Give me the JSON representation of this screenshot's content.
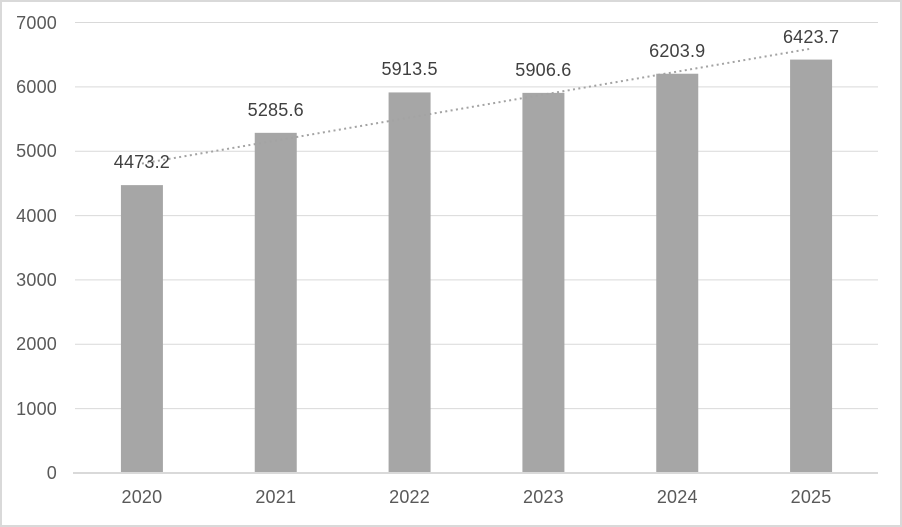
{
  "chart_data": {
    "type": "bar",
    "title": "",
    "xlabel": "",
    "ylabel": "",
    "categories": [
      "2020",
      "2021",
      "2022",
      "2023",
      "2024",
      "2025"
    ],
    "values": [
      4473.2,
      5285.6,
      5913.5,
      5906.6,
      6203.9,
      6423.7
    ],
    "data_labels": [
      "4473.2",
      "5285.6",
      "5913.5",
      "5906.6",
      "6203.9",
      "6423.7"
    ],
    "ylim": [
      0,
      7000
    ],
    "ytick_step": 1000,
    "ytick_labels": [
      "0",
      "1000",
      "2000",
      "3000",
      "4000",
      "5000",
      "6000",
      "7000"
    ],
    "grid": true,
    "legend": "none",
    "trendline": {
      "type": "linear",
      "style": "dotted"
    },
    "colors": {
      "bar": "#A6A6A6",
      "gridline": "#D9D9D9",
      "axis_line": "#D9D9D9",
      "data_label": "#404040",
      "tick_label": "#595959",
      "trendline": "#A3A3A3",
      "background": "#FFFFFF",
      "frame_border": "#D9D9D9"
    }
  }
}
